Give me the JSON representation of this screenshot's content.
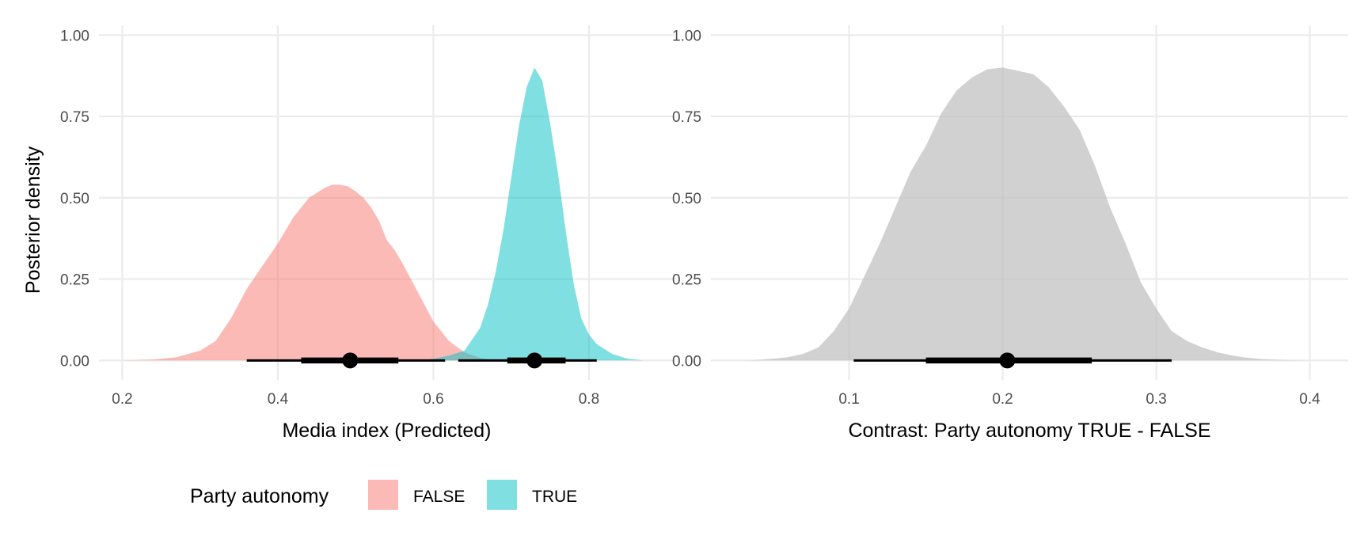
{
  "chart_data": [
    {
      "type": "area",
      "subtype": "posterior-density-halfeye",
      "xlabel": "Media index (Predicted)",
      "ylabel": "Posterior density",
      "xlim": [
        0.17,
        0.91
      ],
      "ylim": [
        -0.06,
        1.03
      ],
      "xticks": [
        0.2,
        0.4,
        0.6,
        0.8
      ],
      "xtick_labels": [
        "0.2",
        "0.4",
        "0.6",
        "0.8"
      ],
      "yticks": [
        0,
        0.25,
        0.5,
        0.75,
        1
      ],
      "ytick_labels": [
        "0.00",
        "0.25",
        "0.50",
        "0.75",
        "1.00"
      ],
      "grid": true,
      "legend": {
        "title": "Party autonomy",
        "position": "bottom",
        "entries": [
          {
            "label": "FALSE",
            "color": "#F8766D"
          },
          {
            "label": "TRUE",
            "color": "#00BFC4"
          }
        ]
      },
      "series": [
        {
          "name": "FALSE",
          "color": "#F8766D",
          "density": {
            "x": [
              0.2,
              0.24,
              0.27,
              0.3,
              0.32,
              0.34,
              0.36,
              0.38,
              0.4,
              0.42,
              0.44,
              0.46,
              0.47,
              0.48,
              0.49,
              0.5,
              0.51,
              0.52,
              0.53,
              0.54,
              0.55,
              0.56,
              0.58,
              0.6,
              0.62,
              0.64,
              0.66,
              0.68
            ],
            "y": [
              0.0,
              0.003,
              0.01,
              0.03,
              0.06,
              0.13,
              0.22,
              0.29,
              0.36,
              0.44,
              0.5,
              0.53,
              0.54,
              0.54,
              0.535,
              0.52,
              0.5,
              0.47,
              0.43,
              0.37,
              0.34,
              0.3,
              0.21,
              0.12,
              0.06,
              0.025,
              0.008,
              0.0
            ]
          },
          "point": 0.493,
          "interval_66": [
            0.43,
            0.555
          ],
          "interval_95": [
            0.36,
            0.615
          ]
        },
        {
          "name": "TRUE",
          "color": "#00BFC4",
          "density": {
            "x": [
              0.58,
              0.6,
              0.62,
              0.64,
              0.66,
              0.67,
              0.68,
              0.69,
              0.7,
              0.71,
              0.72,
              0.73,
              0.74,
              0.75,
              0.76,
              0.77,
              0.78,
              0.79,
              0.8,
              0.81,
              0.82,
              0.83,
              0.85,
              0.87
            ],
            "y": [
              0.0,
              0.005,
              0.015,
              0.03,
              0.1,
              0.17,
              0.27,
              0.4,
              0.56,
              0.72,
              0.84,
              0.9,
              0.86,
              0.73,
              0.58,
              0.4,
              0.24,
              0.13,
              0.08,
              0.05,
              0.035,
              0.02,
              0.005,
              0.0
            ]
          },
          "point": 0.73,
          "interval_66": [
            0.695,
            0.77
          ],
          "interval_95": [
            0.632,
            0.81
          ]
        }
      ]
    },
    {
      "type": "area",
      "subtype": "posterior-density-halfeye",
      "xlabel": "Contrast: Party autonomy TRUE - FALSE",
      "ylabel": "",
      "xlim": [
        0.01,
        0.425
      ],
      "ylim": [
        -0.06,
        1.03
      ],
      "xticks": [
        0.1,
        0.2,
        0.3,
        0.4
      ],
      "xtick_labels": [
        "0.1",
        "0.2",
        "0.3",
        "0.4"
      ],
      "yticks": [
        0,
        0.25,
        0.5,
        0.75,
        1
      ],
      "ytick_labels": [
        "0.00",
        "0.25",
        "0.50",
        "0.75",
        "1.00"
      ],
      "grid": true,
      "series": [
        {
          "name": "",
          "color": "#bdbdbd",
          "density": {
            "x": [
              0.035,
              0.05,
              0.06,
              0.07,
              0.08,
              0.09,
              0.1,
              0.11,
              0.12,
              0.13,
              0.14,
              0.15,
              0.16,
              0.17,
              0.18,
              0.19,
              0.2,
              0.21,
              0.22,
              0.23,
              0.24,
              0.25,
              0.26,
              0.27,
              0.28,
              0.29,
              0.3,
              0.31,
              0.32,
              0.33,
              0.34,
              0.35,
              0.36,
              0.37,
              0.38,
              0.39,
              0.4
            ],
            "y": [
              0.0,
              0.005,
              0.01,
              0.02,
              0.04,
              0.09,
              0.16,
              0.26,
              0.36,
              0.47,
              0.58,
              0.66,
              0.76,
              0.83,
              0.87,
              0.895,
              0.9,
              0.89,
              0.88,
              0.84,
              0.78,
              0.71,
              0.6,
              0.47,
              0.36,
              0.24,
              0.16,
              0.09,
              0.06,
              0.04,
              0.025,
              0.015,
              0.008,
              0.004,
              0.002,
              0.0005,
              0.0
            ]
          },
          "point": 0.203,
          "interval_66": [
            0.15,
            0.258
          ],
          "interval_95": [
            0.103,
            0.31
          ]
        }
      ]
    }
  ]
}
